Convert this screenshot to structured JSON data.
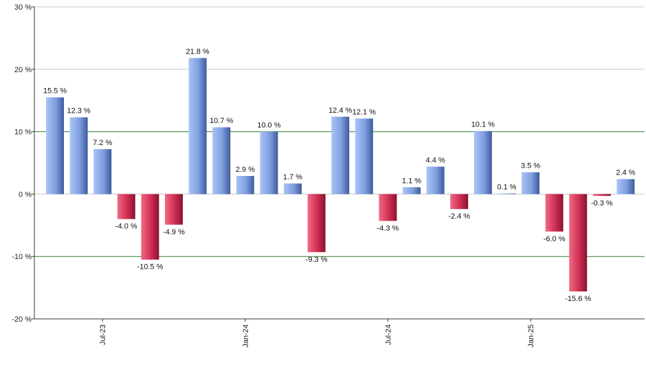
{
  "chart_data": {
    "type": "bar",
    "title": "",
    "xlabel": "",
    "ylabel": "",
    "ylim": [
      -20,
      30
    ],
    "y_ticks": [
      -20,
      -10,
      0,
      10,
      20,
      30
    ],
    "y_tick_labels": [
      "-20 %",
      "-10 %",
      "0 %",
      "10 %",
      "20 %",
      "30 %"
    ],
    "reference_lines": [
      10,
      -10
    ],
    "x_tick_labels": [
      "Jul-23",
      "Jan-24",
      "Jul-24",
      "Jan-25"
    ],
    "x_tick_positions": [
      2,
      8,
      14,
      20
    ],
    "values": [
      15.5,
      12.3,
      7.2,
      -4.0,
      -10.5,
      -4.9,
      21.8,
      10.7,
      2.9,
      10.0,
      1.7,
      -9.3,
      12.4,
      12.1,
      -4.3,
      1.1,
      4.4,
      -2.4,
      10.1,
      0.1,
      3.5,
      -6.0,
      -15.6,
      -0.3,
      2.4
    ],
    "labels": [
      "15.5 %",
      "12.3 %",
      "7.2 %",
      "-4.0 %",
      "-10.5 %",
      "-4.9 %",
      "21.8 %",
      "10.7 %",
      "2.9 %",
      "10.0 %",
      "1.7 %",
      "-9.3 %",
      "12.4 %",
      "12.1 %",
      "-4.3 %",
      "1.1 %",
      "4.4 %",
      "-2.4 %",
      "10.1 %",
      "0.1 %",
      "3.5 %",
      "-6.0 %",
      "-15.6 %",
      "-0.3 %",
      "2.4 %"
    ],
    "grid": true,
    "legend": "none",
    "colors": {
      "positive_light": "#aac4f5",
      "positive_dark": "#3d5a9c",
      "negative_light": "#f06a86",
      "negative_dark": "#8c1230",
      "gridline": "#c8c8c8",
      "reference_line": "#2e7d32",
      "axis": "#333333"
    }
  }
}
